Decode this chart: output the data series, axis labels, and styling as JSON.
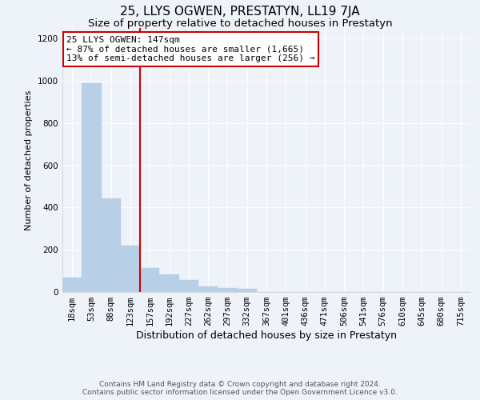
{
  "title": "25, LLYS OGWEN, PRESTATYN, LL19 7JA",
  "subtitle": "Size of property relative to detached houses in Prestatyn",
  "xlabel": "Distribution of detached houses by size in Prestatyn",
  "ylabel": "Number of detached properties",
  "footer_line1": "Contains HM Land Registry data © Crown copyright and database right 2024.",
  "footer_line2": "Contains public sector information licensed under the Open Government Licence v3.0.",
  "categories": [
    "18sqm",
    "53sqm",
    "88sqm",
    "123sqm",
    "157sqm",
    "192sqm",
    "227sqm",
    "262sqm",
    "297sqm",
    "332sqm",
    "367sqm",
    "401sqm",
    "436sqm",
    "471sqm",
    "506sqm",
    "541sqm",
    "576sqm",
    "610sqm",
    "645sqm",
    "680sqm",
    "715sqm"
  ],
  "bar_heights": [
    70,
    990,
    445,
    220,
    115,
    85,
    55,
    25,
    20,
    15,
    0,
    0,
    0,
    0,
    0,
    0,
    0,
    0,
    0,
    0,
    0
  ],
  "bar_color": "#b8cfe8",
  "bar_edge_color": "#b8cfe8",
  "background_color": "#eef2f9",
  "plot_bg_color": "#eef2f9",
  "grid_color": "#ffffff",
  "vline_x_index": 3,
  "vline_color": "#cc0000",
  "annotation_text_line1": "25 LLYS OGWEN: 147sqm",
  "annotation_text_line2": "← 87% of detached houses are smaller (1,665)",
  "annotation_text_line3": "13% of semi-detached houses are larger (256) →",
  "annotation_box_color": "#ffffff",
  "annotation_box_edge": "#cc0000",
  "ylim": [
    0,
    1250
  ],
  "yticks": [
    0,
    200,
    400,
    600,
    800,
    1000,
    1200
  ],
  "title_fontsize": 11,
  "subtitle_fontsize": 9.5,
  "xlabel_fontsize": 9,
  "ylabel_fontsize": 8,
  "tick_fontsize": 7.5,
  "annotation_fontsize": 8,
  "footer_fontsize": 6.5
}
